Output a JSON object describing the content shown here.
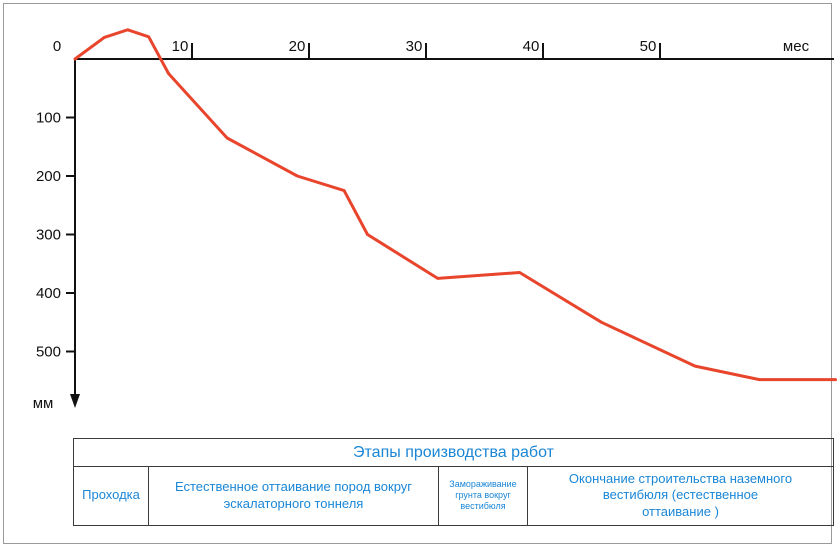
{
  "chart_data": {
    "type": "line",
    "title": "",
    "xlabel": "мес",
    "ylabel": "мм",
    "xlim": [
      0,
      66
    ],
    "ylim": [
      0,
      560
    ],
    "y_inverted": true,
    "x_ticks": [
      0,
      10,
      20,
      30,
      40,
      50
    ],
    "x_tick_labels": [
      "0",
      "10",
      "20",
      "30",
      "40",
      "50"
    ],
    "y_ticks": [
      100,
      200,
      300,
      400,
      500
    ],
    "y_tick_labels": [
      "100",
      "200",
      "300",
      "400",
      "500"
    ],
    "grid": false,
    "series": [
      {
        "color": "#e8452c",
        "x": [
          0,
          2.5,
          4.5,
          6.3,
          8,
          13,
          19,
          23,
          25,
          31,
          38,
          45,
          53,
          58.5,
          65
        ],
        "y": [
          0,
          -37,
          -50,
          -38,
          25,
          135,
          200,
          225,
          300,
          375,
          365,
          450,
          525,
          548,
          548
        ]
      }
    ]
  },
  "stages": {
    "title": "Этапы производства работ",
    "items": [
      {
        "label": "Проходка"
      },
      {
        "label": "Естественное оттаивание пород вокруг эскалаторного тоннеля"
      },
      {
        "label": "Замораживание грунта вокруг вестибюля"
      },
      {
        "label": "Окончание строительства наземного вестибюля (естественное оттаивание )"
      }
    ]
  }
}
